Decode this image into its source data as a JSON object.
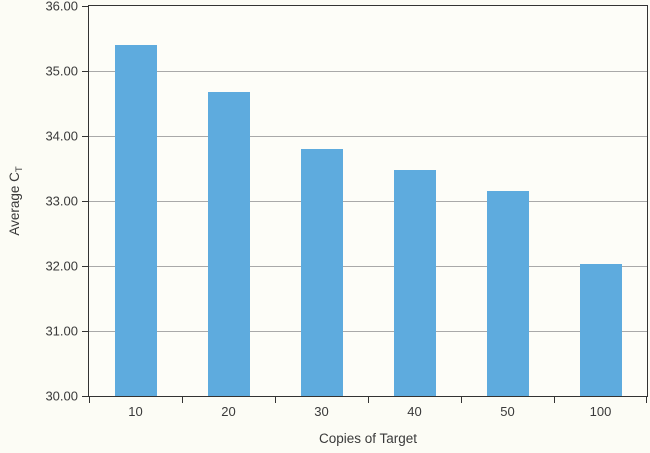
{
  "chart_data": {
    "type": "bar",
    "title": "",
    "xlabel": "Copies of Target",
    "ylabel": "Average C_T",
    "ylabel_base": "Average C",
    "ylabel_sub": "T",
    "categories": [
      "10",
      "20",
      "30",
      "40",
      "50",
      "100"
    ],
    "values": [
      35.4,
      34.68,
      33.8,
      33.48,
      33.15,
      32.03
    ],
    "ylim": [
      30,
      36
    ],
    "ytick_step": 1,
    "yticks": [
      "30.00",
      "31.00",
      "32.00",
      "33.00",
      "34.00",
      "35.00",
      "36.00"
    ],
    "grid": "horizontal",
    "legend": "none",
    "colors": {
      "bar": "#5EABDE",
      "gridline": "#A9A9A9",
      "axis": "#333333",
      "text": "#3A3A3A",
      "background": "#FCFCF5"
    }
  }
}
